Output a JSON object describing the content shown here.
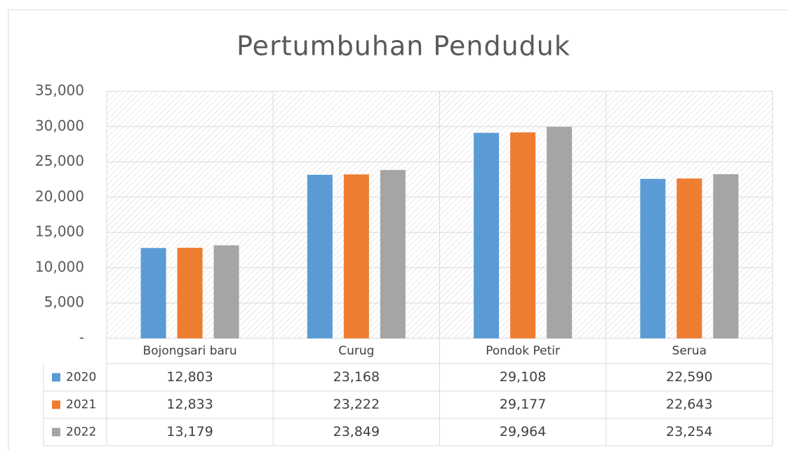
{
  "chart_data": {
    "type": "bar",
    "title": "Pertumbuhan Penduduk",
    "categories": [
      "Bojongsari baru",
      "Curug",
      "Pondok Petir",
      "Serua"
    ],
    "series": [
      {
        "name": "2020",
        "color": "#5b9bd5",
        "values": [
          12803,
          23168,
          29108,
          22590
        ],
        "value_labels": [
          "12,803",
          "23,168",
          "29,108",
          "22,590"
        ]
      },
      {
        "name": "2021",
        "color": "#ed7d31",
        "values": [
          12833,
          23222,
          29177,
          22643
        ],
        "value_labels": [
          "12,833",
          "23,222",
          "29,177",
          "22,643"
        ]
      },
      {
        "name": "2022",
        "color": "#a5a5a5",
        "values": [
          13179,
          23849,
          29964,
          23254
        ],
        "value_labels": [
          "13,179",
          "23,849",
          "29,964",
          "23,254"
        ]
      }
    ],
    "ylim": [
      0,
      35000
    ],
    "yticks": [
      {
        "value": 0,
        "label": "-"
      },
      {
        "value": 5000,
        "label": "5,000"
      },
      {
        "value": 10000,
        "label": "10,000"
      },
      {
        "value": 15000,
        "label": "15,000"
      },
      {
        "value": 20000,
        "label": "20,000"
      },
      {
        "value": 25000,
        "label": "25,000"
      },
      {
        "value": 30000,
        "label": "30,000"
      },
      {
        "value": 35000,
        "label": "35,000"
      }
    ],
    "grid": true
  }
}
